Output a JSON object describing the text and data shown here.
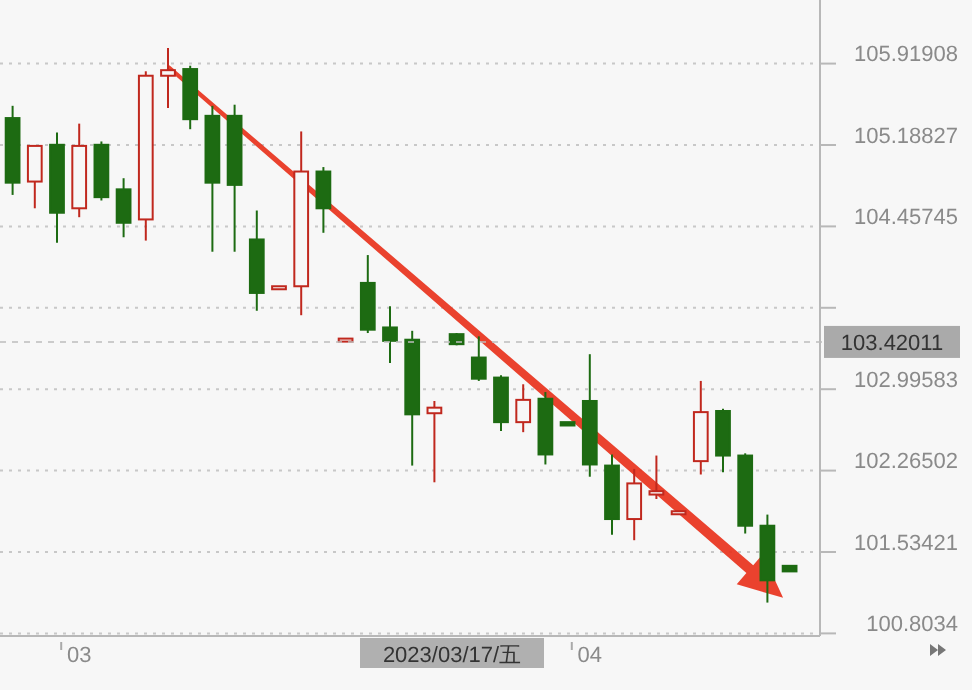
{
  "chart_data": {
    "type": "candlestick",
    "categories": [
      null,
      null,
      null,
      "03",
      null,
      null,
      null,
      null,
      null,
      null,
      null,
      null,
      null,
      null,
      null,
      null,
      null,
      null,
      null,
      null,
      null,
      null,
      null,
      null,
      null,
      null,
      "04",
      null,
      null,
      null,
      null,
      null,
      null,
      null,
      null,
      null
    ],
    "ohlc": [
      [
        105.43,
        105.54,
        104.74,
        104.85
      ],
      [
        104.86,
        105.18,
        104.62,
        105.18
      ],
      [
        105.19,
        105.3,
        104.31,
        104.58
      ],
      [
        104.62,
        105.38,
        104.54,
        105.18
      ],
      [
        105.19,
        105.22,
        104.69,
        104.72
      ],
      [
        104.79,
        104.89,
        104.36,
        104.49
      ],
      [
        104.52,
        105.85,
        104.33,
        105.81
      ],
      [
        105.81,
        106.06,
        105.52,
        105.86
      ],
      [
        105.87,
        105.9,
        105.33,
        105.42
      ],
      [
        105.45,
        105.54,
        104.23,
        104.85
      ],
      [
        105.45,
        105.55,
        104.23,
        104.83
      ],
      [
        104.34,
        104.6,
        103.7,
        103.86
      ],
      [
        103.9,
        103.92,
        103.9,
        103.92
      ],
      [
        103.92,
        105.31,
        103.66,
        104.95
      ],
      [
        104.95,
        104.99,
        104.4,
        104.62
      ],
      [
        103.43,
        103.45,
        103.43,
        103.45
      ],
      [
        103.95,
        104.2,
        103.5,
        103.53
      ],
      [
        103.55,
        103.74,
        103.23,
        103.43
      ],
      [
        103.44,
        103.52,
        102.31,
        102.77
      ],
      [
        102.78,
        102.89,
        102.16,
        102.83
      ],
      [
        103.49,
        103.5,
        103.39,
        103.4
      ],
      [
        103.28,
        103.47,
        103.07,
        103.09
      ],
      [
        103.1,
        103.12,
        102.62,
        102.7
      ],
      [
        102.7,
        103.04,
        102.61,
        102.9
      ],
      [
        102.91,
        102.97,
        102.32,
        102.41
      ],
      [
        102.7,
        102.7,
        102.67,
        102.67
      ],
      [
        102.89,
        103.31,
        102.21,
        102.32
      ],
      [
        102.31,
        102.41,
        101.69,
        101.83
      ],
      [
        101.83,
        102.28,
        101.64,
        102.15
      ],
      [
        102.05,
        102.4,
        102.01,
        102.08
      ],
      [
        101.88,
        101.9,
        101.88,
        101.9
      ],
      [
        102.35,
        103.07,
        102.23,
        102.79
      ],
      [
        102.8,
        102.82,
        102.25,
        102.4
      ],
      [
        102.4,
        102.42,
        101.7,
        101.77
      ],
      [
        101.77,
        101.87,
        101.08,
        101.28
      ],
      [
        101.41,
        101.41,
        101.36,
        101.36
      ]
    ],
    "colors": [
      "#1d6b12",
      "#c0281e",
      "#1d6b12",
      "#c0281e",
      "#1d6b12",
      "#1d6b12",
      "#c0281e",
      "#c0281e",
      "#1d6b12",
      "#1d6b12",
      "#1d6b12",
      "#1d6b12",
      "#c0281e",
      "#c0281e",
      "#1d6b12",
      "#c0281e",
      "#1d6b12",
      "#1d6b12",
      "#1d6b12",
      "#c0281e",
      "#1d6b12",
      "#1d6b12",
      "#1d6b12",
      "#c0281e",
      "#1d6b12",
      "#1d6b12",
      "#1d6b12",
      "#1d6b12",
      "#c0281e",
      "#c0281e",
      "#c0281e",
      "#c0281e",
      "#1d6b12",
      "#1d6b12",
      "#1d6b12",
      "#1d6b12"
    ],
    "ylim": [
      100.78,
      106.49
    ],
    "yticks": [
      105.91908,
      105.18827,
      104.45745,
      {
        "value": 103.72664,
        "label": null
      },
      102.99583,
      102.26502,
      101.53421,
      100.8034
    ],
    "grid": "y",
    "ref_lines": [
      {
        "axis": "y",
        "value": 103.42011,
        "label": "103.42011"
      }
    ],
    "annotations": [
      "2023/03/17/五"
    ]
  }
}
